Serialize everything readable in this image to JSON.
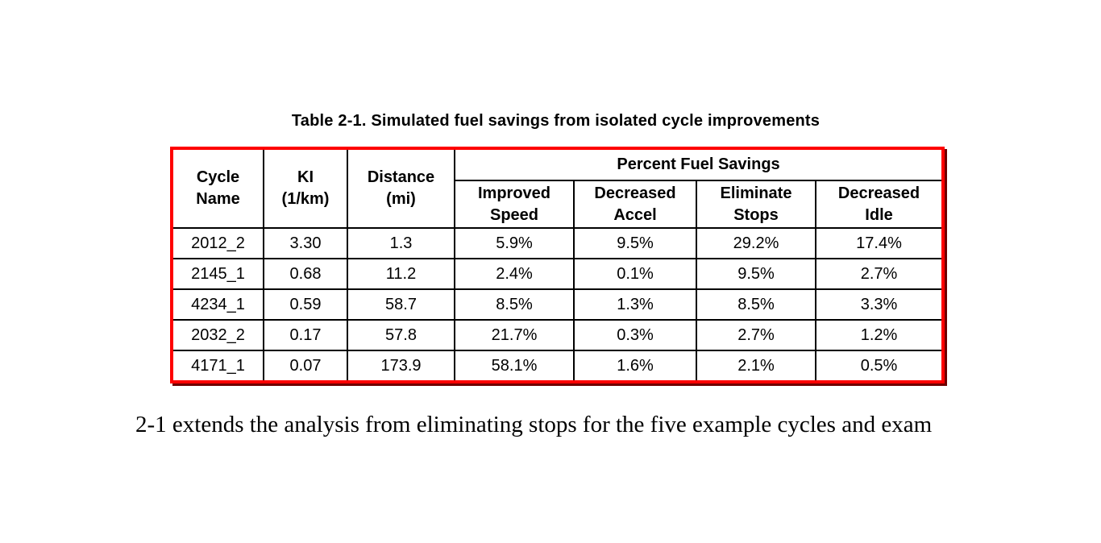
{
  "caption": "Table 2-1. Simulated fuel savings from isolated cycle improvements",
  "table": {
    "border_color": "#fe0000",
    "gridline_color": "#000000",
    "group_header": "Percent Fuel Savings",
    "columns": [
      {
        "label": "Cycle\nName"
      },
      {
        "label": "KI\n(1/km)"
      },
      {
        "label": "Distance\n(mi)"
      },
      {
        "label": "Improved\nSpeed"
      },
      {
        "label": "Decreased\nAccel"
      },
      {
        "label": "Eliminate\nStops"
      },
      {
        "label": "Decreased\nIdle"
      }
    ],
    "rows": [
      [
        "2012_2",
        "3.30",
        "1.3",
        "5.9%",
        "9.5%",
        "29.2%",
        "17.4%"
      ],
      [
        "2145_1",
        "0.68",
        "11.2",
        "2.4%",
        "0.1%",
        "9.5%",
        "2.7%"
      ],
      [
        "4234_1",
        "0.59",
        "58.7",
        "8.5%",
        "1.3%",
        "8.5%",
        "3.3%"
      ],
      [
        "2032_2",
        "0.17",
        "57.8",
        "21.7%",
        "0.3%",
        "2.7%",
        "1.2%"
      ],
      [
        "4171_1",
        "0.07",
        "173.9",
        "58.1%",
        "1.6%",
        "2.1%",
        "0.5%"
      ]
    ]
  },
  "body_text": "2-1 extends the analysis from eliminating stops for the five example cycles and exam"
}
